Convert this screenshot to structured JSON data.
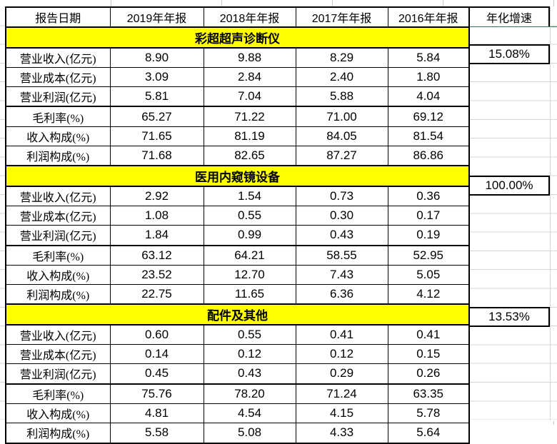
{
  "table": {
    "header": [
      "报告日期",
      "2019年年报",
      "2018年年报",
      "2017年年报",
      "2016年年报"
    ],
    "growth_header": "年化增速",
    "row_labels": [
      "营业收入(亿元)",
      "营业成本(亿元)",
      "营业利润(亿元)",
      "毛利率(%)",
      "收入构成(%)",
      "利润构成(%)"
    ],
    "sections": [
      {
        "title": "彩超超声诊断仪",
        "growth": "15.08%",
        "rows": [
          [
            "8.90",
            "9.88",
            "8.29",
            "5.84"
          ],
          [
            "3.09",
            "2.84",
            "2.40",
            "1.80"
          ],
          [
            "5.81",
            "7.04",
            "5.88",
            "4.04"
          ],
          [
            "65.27",
            "71.22",
            "71.00",
            "69.12"
          ],
          [
            "71.65",
            "81.19",
            "84.05",
            "81.54"
          ],
          [
            "71.68",
            "82.65",
            "87.27",
            "86.86"
          ]
        ]
      },
      {
        "title": "医用内窥镜设备",
        "growth": "100.00%",
        "rows": [
          [
            "2.92",
            "1.54",
            "0.73",
            "0.36"
          ],
          [
            "1.08",
            "0.55",
            "0.30",
            "0.17"
          ],
          [
            "1.84",
            "0.99",
            "0.43",
            "0.19"
          ],
          [
            "63.12",
            "64.21",
            "58.55",
            "52.95"
          ],
          [
            "23.52",
            "12.70",
            "7.43",
            "5.05"
          ],
          [
            "22.75",
            "11.65",
            "6.36",
            "4.12"
          ]
        ]
      },
      {
        "title": "配件及其他",
        "growth": "13.53%",
        "rows": [
          [
            "0.60",
            "0.55",
            "0.41",
            "0.41"
          ],
          [
            "0.14",
            "0.12",
            "0.12",
            "0.15"
          ],
          [
            "0.45",
            "0.43",
            "0.29",
            "0.26"
          ],
          [
            "75.76",
            "78.20",
            "71.24",
            "63.35"
          ],
          [
            "4.81",
            "4.54",
            "4.15",
            "5.78"
          ],
          [
            "5.58",
            "5.08",
            "4.33",
            "5.64"
          ]
        ]
      }
    ],
    "colors": {
      "section_band_bg": "#ffff00",
      "table_border": "#000000",
      "sheet_gridline": "#d6d6d6",
      "green_border": "#2e7d4d"
    }
  }
}
